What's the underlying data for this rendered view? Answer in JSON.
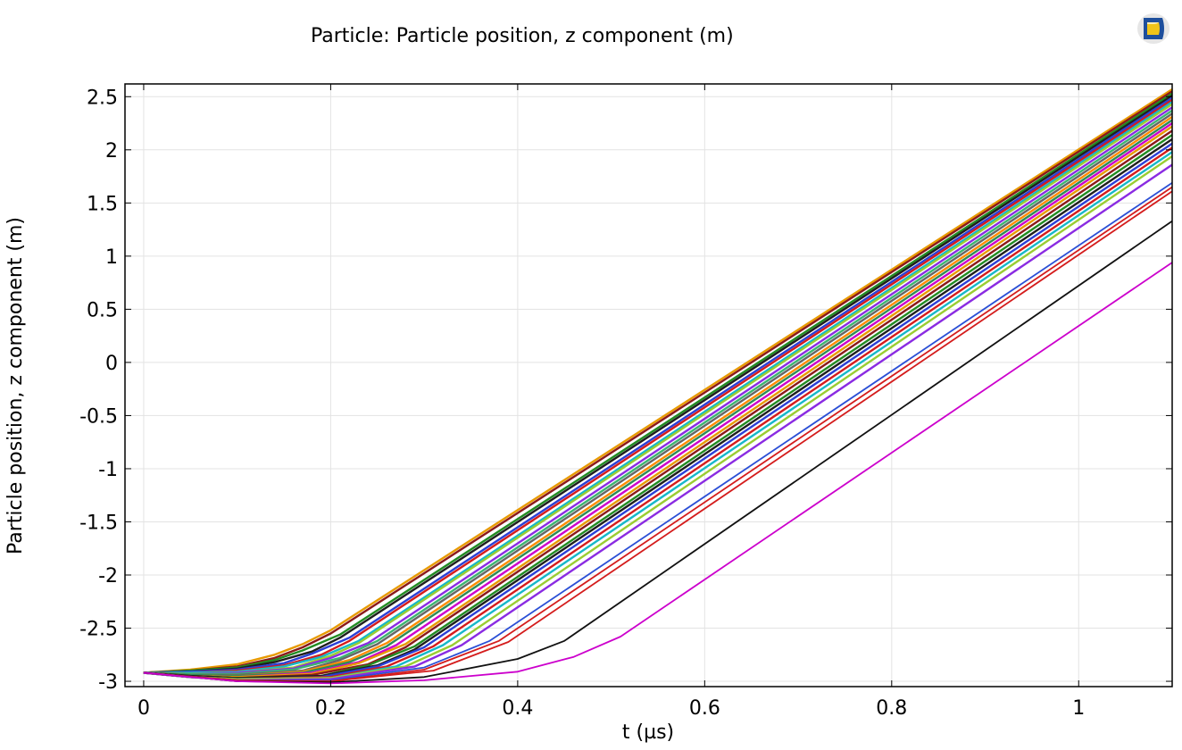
{
  "chart_data": {
    "type": "line",
    "title": "Particle: Particle position, z component (m)",
    "xlabel": "t (µs)",
    "ylabel": "Particle position, z component (m)",
    "xlim": [
      -0.02,
      1.1
    ],
    "ylim": [
      -3.05,
      2.62
    ],
    "xticks": [
      0,
      0.2,
      0.4,
      0.6,
      0.8,
      1
    ],
    "xtick_labels": [
      "0",
      "0.2",
      "0.4",
      "0.6",
      "0.8",
      "1"
    ],
    "yticks": [
      2.5,
      2,
      1.5,
      1,
      0.5,
      0,
      -0.5,
      -1,
      -1.5,
      -2,
      -2.5,
      -3
    ],
    "ytick_labels": [
      "2.5",
      "2",
      "1.5",
      "1",
      "0.5",
      "0",
      "-0.5",
      "-1",
      "-1.5",
      "-2",
      "-2.5",
      "-3"
    ],
    "grid": true,
    "series_style": "many particle trajectories, varied colors",
    "colors": [
      "#e89a00",
      "#8b1a1a",
      "#228b22",
      "#1f1f1f",
      "#2b3fd6",
      "#d41c1c",
      "#16b8c8",
      "#9acd32",
      "#8a2be2",
      "#3cb371",
      "#666666",
      "#ff8c00",
      "#2e8b57",
      "#cc00cc"
    ],
    "series": [
      {
        "x": [
          0,
          0.05,
          0.1,
          0.14,
          0.17,
          0.2,
          1.1
        ],
        "y": [
          -2.92,
          -2.89,
          -2.84,
          -2.75,
          -2.65,
          -2.52,
          2.57
        ]
      },
      {
        "x": [
          0,
          0.05,
          0.1,
          0.14,
          0.17,
          0.2,
          1.1
        ],
        "y": [
          -2.92,
          -2.9,
          -2.86,
          -2.78,
          -2.68,
          -2.55,
          2.55
        ]
      },
      {
        "x": [
          0,
          0.05,
          0.1,
          0.14,
          0.17,
          0.21,
          1.1
        ],
        "y": [
          -2.92,
          -2.9,
          -2.87,
          -2.8,
          -2.71,
          -2.56,
          2.53
        ]
      },
      {
        "x": [
          0,
          0.05,
          0.1,
          0.14,
          0.18,
          0.21,
          1.1
        ],
        "y": [
          -2.92,
          -2.91,
          -2.88,
          -2.82,
          -2.72,
          -2.59,
          2.51
        ]
      },
      {
        "x": [
          0,
          0.05,
          0.1,
          0.15,
          0.18,
          0.22,
          1.1
        ],
        "y": [
          -2.92,
          -2.91,
          -2.89,
          -2.83,
          -2.74,
          -2.59,
          2.49
        ]
      },
      {
        "x": [
          0,
          0.05,
          0.1,
          0.15,
          0.19,
          0.22,
          1.1
        ],
        "y": [
          -2.92,
          -2.92,
          -2.9,
          -2.85,
          -2.75,
          -2.62,
          2.47
        ]
      },
      {
        "x": [
          0,
          0.05,
          0.1,
          0.15,
          0.19,
          0.23,
          1.1
        ],
        "y": [
          -2.92,
          -2.92,
          -2.91,
          -2.86,
          -2.77,
          -2.62,
          2.45
        ]
      },
      {
        "x": [
          0,
          0.05,
          0.1,
          0.16,
          0.2,
          0.23,
          1.1
        ],
        "y": [
          -2.92,
          -2.93,
          -2.92,
          -2.87,
          -2.76,
          -2.64,
          2.43
        ]
      },
      {
        "x": [
          0,
          0.05,
          0.1,
          0.16,
          0.2,
          0.24,
          1.1
        ],
        "y": [
          -2.92,
          -2.93,
          -2.92,
          -2.88,
          -2.78,
          -2.64,
          2.4
        ]
      },
      {
        "x": [
          0,
          0.05,
          0.1,
          0.16,
          0.21,
          0.25,
          1.1
        ],
        "y": [
          -2.92,
          -2.93,
          -2.93,
          -2.89,
          -2.78,
          -2.62,
          2.37
        ]
      },
      {
        "x": [
          0,
          0.05,
          0.1,
          0.17,
          0.21,
          0.25,
          1.1
        ],
        "y": [
          -2.92,
          -2.94,
          -2.94,
          -2.9,
          -2.8,
          -2.65,
          2.34
        ]
      },
      {
        "x": [
          0,
          0.05,
          0.1,
          0.17,
          0.22,
          0.26,
          1.1
        ],
        "y": [
          -2.92,
          -2.94,
          -2.95,
          -2.91,
          -2.8,
          -2.64,
          2.31
        ]
      },
      {
        "x": [
          0,
          0.05,
          0.1,
          0.17,
          0.22,
          0.26,
          1.1
        ],
        "y": [
          -2.92,
          -2.94,
          -2.95,
          -2.92,
          -2.82,
          -2.67,
          2.28
        ]
      },
      {
        "x": [
          0,
          0.05,
          0.1,
          0.18,
          0.23,
          0.27,
          1.1
        ],
        "y": [
          -2.92,
          -2.95,
          -2.96,
          -2.92,
          -2.82,
          -2.66,
          2.25
        ]
      },
      {
        "x": [
          0,
          0.05,
          0.1,
          0.18,
          0.23,
          0.28,
          1.1
        ],
        "y": [
          -2.92,
          -2.95,
          -2.96,
          -2.93,
          -2.83,
          -2.65,
          2.22
        ]
      },
      {
        "x": [
          0,
          0.05,
          0.1,
          0.18,
          0.24,
          0.28,
          1.1
        ],
        "y": [
          -2.92,
          -2.95,
          -2.97,
          -2.94,
          -2.84,
          -2.68,
          2.18
        ]
      },
      {
        "x": [
          0,
          0.05,
          0.1,
          0.19,
          0.24,
          0.29,
          1.1
        ],
        "y": [
          -2.92,
          -2.95,
          -2.97,
          -2.95,
          -2.85,
          -2.67,
          2.14
        ]
      },
      {
        "x": [
          0,
          0.05,
          0.1,
          0.19,
          0.25,
          0.29,
          1.1
        ],
        "y": [
          -2.92,
          -2.95,
          -2.97,
          -2.95,
          -2.85,
          -2.7,
          2.1
        ]
      },
      {
        "x": [
          0,
          0.05,
          0.1,
          0.19,
          0.25,
          0.3,
          1.1
        ],
        "y": [
          -2.92,
          -2.96,
          -2.98,
          -2.96,
          -2.86,
          -2.68,
          2.06
        ]
      },
      {
        "x": [
          0,
          0.05,
          0.1,
          0.2,
          0.26,
          0.31,
          1.1
        ],
        "y": [
          -2.92,
          -2.96,
          -2.98,
          -2.96,
          -2.86,
          -2.67,
          2.02
        ]
      },
      {
        "x": [
          0,
          0.05,
          0.1,
          0.2,
          0.27,
          0.32,
          1.1
        ],
        "y": [
          -2.92,
          -2.96,
          -2.98,
          -2.97,
          -2.86,
          -2.66,
          1.98
        ]
      },
      {
        "x": [
          0,
          0.05,
          0.1,
          0.2,
          0.28,
          0.33,
          1.1
        ],
        "y": [
          -2.92,
          -2.96,
          -2.98,
          -2.97,
          -2.86,
          -2.66,
          1.94
        ]
      },
      {
        "x": [
          0,
          0.05,
          0.1,
          0.2,
          0.29,
          0.34,
          1.1
        ],
        "y": [
          -2.92,
          -2.96,
          -2.99,
          -2.98,
          -2.86,
          -2.66,
          1.86
        ]
      },
      {
        "x": [
          0,
          0.1,
          0.2,
          0.3,
          0.37,
          1.1
        ],
        "y": [
          -2.92,
          -2.99,
          -2.99,
          -2.87,
          -2.62,
          1.69
        ]
      },
      {
        "x": [
          0,
          0.1,
          0.2,
          0.3,
          0.38,
          1.1
        ],
        "y": [
          -2.92,
          -2.99,
          -3.0,
          -2.89,
          -2.62,
          1.65
        ]
      },
      {
        "x": [
          0,
          0.1,
          0.2,
          0.31,
          0.39,
          1.1
        ],
        "y": [
          -2.92,
          -3.0,
          -3.0,
          -2.9,
          -2.63,
          1.61
        ]
      },
      {
        "x": [
          0,
          0.1,
          0.2,
          0.3,
          0.4,
          0.45,
          1.1
        ],
        "y": [
          -2.92,
          -3.0,
          -3.01,
          -2.96,
          -2.79,
          -2.62,
          1.33
        ]
      },
      {
        "x": [
          0,
          0.1,
          0.2,
          0.3,
          0.4,
          0.46,
          0.51,
          1.1
        ],
        "y": [
          -2.92,
          -3.0,
          -3.02,
          -2.99,
          -2.91,
          -2.77,
          -2.58,
          0.94
        ]
      }
    ]
  }
}
